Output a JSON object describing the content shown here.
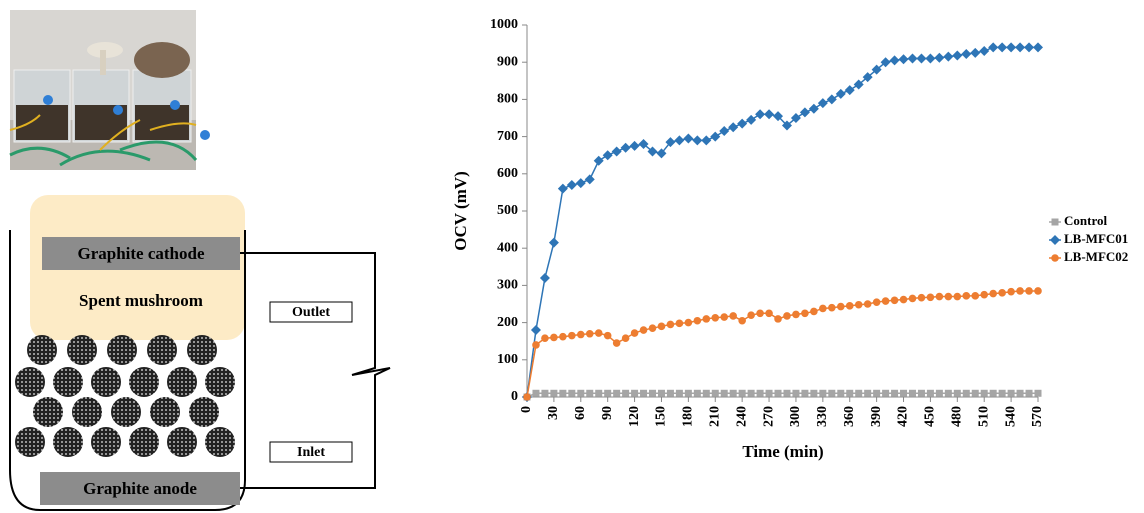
{
  "chart_data": {
    "type": "line",
    "x": [
      0,
      10,
      20,
      30,
      40,
      50,
      60,
      70,
      80,
      90,
      100,
      110,
      120,
      130,
      140,
      150,
      160,
      170,
      180,
      190,
      200,
      210,
      220,
      230,
      240,
      250,
      260,
      270,
      280,
      290,
      300,
      310,
      320,
      330,
      340,
      350,
      360,
      370,
      380,
      390,
      400,
      410,
      420,
      430,
      440,
      450,
      460,
      470,
      480,
      490,
      500,
      510,
      520,
      530,
      540,
      550,
      560,
      570
    ],
    "series": [
      {
        "name": "Control",
        "color": "#a5a5a5",
        "marker": "square",
        "values": [
          0,
          10,
          10,
          10,
          10,
          10,
          10,
          10,
          10,
          10,
          10,
          10,
          10,
          10,
          10,
          10,
          10,
          10,
          10,
          10,
          10,
          10,
          10,
          10,
          10,
          10,
          10,
          10,
          10,
          10,
          10,
          10,
          10,
          10,
          10,
          10,
          10,
          10,
          10,
          10,
          10,
          10,
          10,
          10,
          10,
          10,
          10,
          10,
          10,
          10,
          10,
          10,
          10,
          10,
          10,
          10,
          10,
          10
        ]
      },
      {
        "name": "LB-MFC01",
        "color": "#2e75b6",
        "marker": "diamond",
        "values": [
          0,
          180,
          320,
          415,
          560,
          570,
          575,
          585,
          635,
          650,
          660,
          670,
          675,
          680,
          660,
          655,
          685,
          690,
          695,
          690,
          690,
          700,
          715,
          725,
          735,
          745,
          760,
          760,
          755,
          730,
          750,
          765,
          775,
          790,
          800,
          815,
          825,
          840,
          860,
          880,
          900,
          905,
          908,
          910,
          910,
          910,
          912,
          915,
          918,
          922,
          925,
          930,
          940,
          940,
          940,
          940,
          940,
          940
        ]
      },
      {
        "name": "LB-MFC02",
        "color": "#ed7d31",
        "marker": "circle",
        "values": [
          0,
          140,
          158,
          160,
          162,
          165,
          168,
          170,
          172,
          165,
          145,
          158,
          172,
          180,
          185,
          190,
          195,
          198,
          200,
          205,
          210,
          213,
          215,
          218,
          205,
          220,
          225,
          225,
          210,
          218,
          222,
          225,
          230,
          238,
          240,
          243,
          245,
          248,
          250,
          255,
          258,
          260,
          262,
          265,
          267,
          268,
          270,
          270,
          270,
          272,
          272,
          275,
          278,
          280,
          283,
          285,
          285,
          285
        ]
      }
    ],
    "xlabel": "Time (min)",
    "ylabel": "OCV (mV)",
    "xlim": [
      0,
      570
    ],
    "xticks": [
      0,
      30,
      60,
      90,
      120,
      150,
      180,
      210,
      240,
      270,
      300,
      330,
      360,
      390,
      420,
      450,
      480,
      510,
      540,
      570
    ],
    "ylim": [
      0,
      1000
    ],
    "yticks": [
      0,
      100,
      200,
      300,
      400,
      500,
      600,
      700,
      800,
      900,
      1000
    ],
    "legend": "right"
  },
  "diagram": {
    "cathode": "Graphite cathode",
    "substrate": "Spent mushroom",
    "outlet": "Outlet",
    "inlet": "Inlet",
    "anode": "Graphite anode"
  }
}
